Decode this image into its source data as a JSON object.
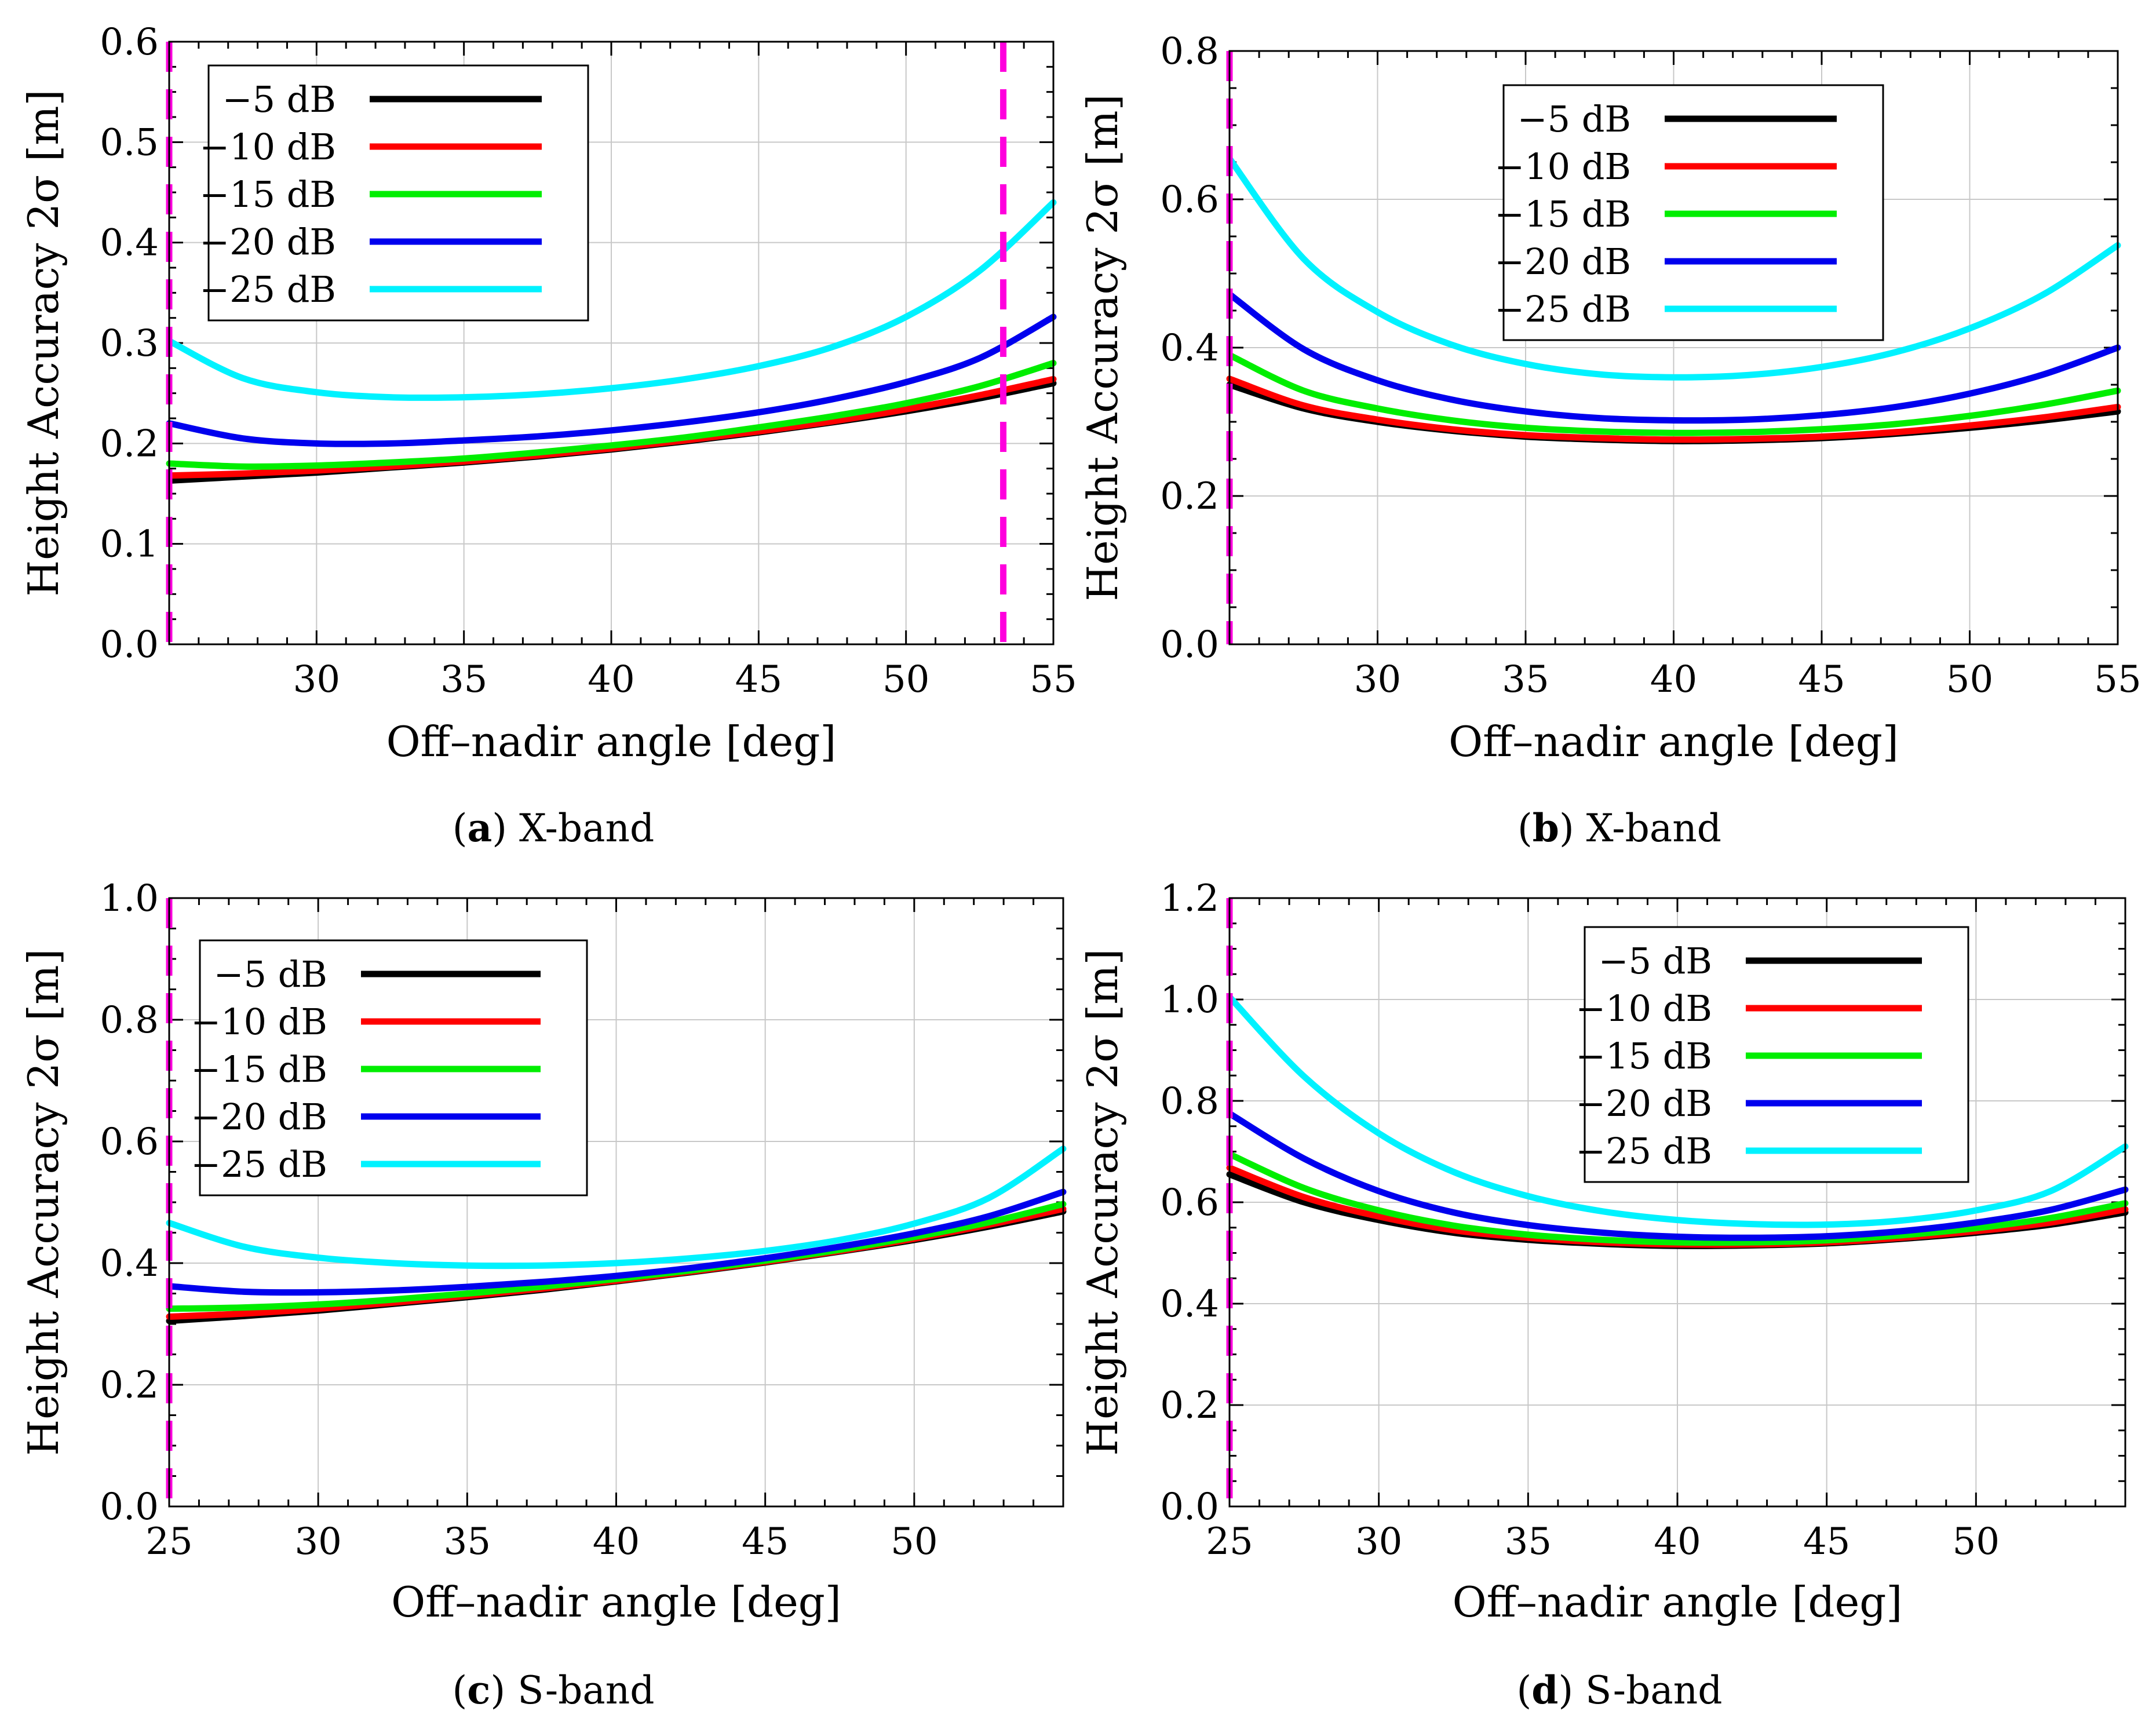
{
  "chart_data": [
    {
      "type": "line",
      "panel": "a",
      "caption_letter": "a",
      "caption_text": "X-band",
      "xlabel": "Off–nadir angle [deg]",
      "ylabel": "Height Accuracy 2σ [m]",
      "xlim": [
        25,
        55
      ],
      "ylim": [
        0,
        0.6
      ],
      "xticks": [
        30,
        35,
        40,
        45,
        50,
        55
      ],
      "yticks": [
        0.0,
        0.1,
        0.2,
        0.3,
        0.4,
        0.5,
        0.6
      ],
      "ytick_labels": [
        "0.0",
        "0.1",
        "0.2",
        "0.3",
        "0.4",
        "0.5",
        "0.6"
      ],
      "grid": true,
      "legend_location": "upper-left",
      "vertical_markers": [
        25,
        53.3
      ],
      "x": [
        25,
        27.5,
        30,
        32.5,
        35,
        37.5,
        40,
        42.5,
        45,
        47.5,
        50,
        52.5,
        55
      ],
      "series": [
        {
          "name": "−5 dB",
          "color": "#000000",
          "values": [
            0.163,
            0.167,
            0.171,
            0.176,
            0.181,
            0.187,
            0.194,
            0.202,
            0.211,
            0.221,
            0.232,
            0.245,
            0.26
          ]
        },
        {
          "name": "−10 dB",
          "color": "#ff0000",
          "values": [
            0.168,
            0.17,
            0.173,
            0.177,
            0.182,
            0.188,
            0.195,
            0.203,
            0.212,
            0.222,
            0.234,
            0.248,
            0.264
          ]
        },
        {
          "name": "−15 dB",
          "color": "#00ee00",
          "values": [
            0.18,
            0.177,
            0.178,
            0.181,
            0.185,
            0.191,
            0.198,
            0.206,
            0.216,
            0.227,
            0.24,
            0.257,
            0.28
          ]
        },
        {
          "name": "−20 dB",
          "color": "#0000ee",
          "values": [
            0.22,
            0.205,
            0.2,
            0.2,
            0.203,
            0.207,
            0.213,
            0.221,
            0.231,
            0.244,
            0.261,
            0.285,
            0.326
          ]
        },
        {
          "name": "−25 dB",
          "color": "#00f2ff",
          "values": [
            0.302,
            0.265,
            0.251,
            0.246,
            0.246,
            0.249,
            0.255,
            0.264,
            0.277,
            0.296,
            0.326,
            0.372,
            0.44
          ]
        }
      ]
    },
    {
      "type": "line",
      "panel": "b",
      "caption_letter": "b",
      "caption_text": "X-band",
      "xlabel": "Off–nadir angle [deg]",
      "ylabel": "Height Accuracy 2σ [m]",
      "xlim": [
        25,
        55
      ],
      "ylim": [
        0,
        0.8
      ],
      "xticks": [
        30,
        35,
        40,
        45,
        50,
        55
      ],
      "yticks": [
        0.0,
        0.2,
        0.4,
        0.6,
        0.8
      ],
      "ytick_labels": [
        "0.0",
        "0.2",
        "0.4",
        "0.6",
        "0.8"
      ],
      "grid": true,
      "legend_location": "upper-center",
      "vertical_markers": [
        25
      ],
      "x": [
        25,
        27.5,
        30,
        32.5,
        35,
        37.5,
        40,
        42.5,
        45,
        47.5,
        50,
        52.5,
        55
      ],
      "series": [
        {
          "name": "−5 dB",
          "color": "#000000",
          "values": [
            0.35,
            0.318,
            0.3,
            0.288,
            0.28,
            0.276,
            0.274,
            0.275,
            0.278,
            0.284,
            0.292,
            0.302,
            0.314
          ]
        },
        {
          "name": "−10 dB",
          "color": "#ff0000",
          "values": [
            0.358,
            0.322,
            0.303,
            0.29,
            0.282,
            0.278,
            0.276,
            0.277,
            0.28,
            0.286,
            0.295,
            0.306,
            0.32
          ]
        },
        {
          "name": "−15 dB",
          "color": "#00ee00",
          "values": [
            0.39,
            0.342,
            0.318,
            0.302,
            0.292,
            0.287,
            0.285,
            0.286,
            0.29,
            0.297,
            0.308,
            0.323,
            0.342
          ]
        },
        {
          "name": "−20 dB",
          "color": "#0000ee",
          "values": [
            0.472,
            0.398,
            0.356,
            0.33,
            0.314,
            0.305,
            0.302,
            0.303,
            0.309,
            0.32,
            0.338,
            0.364,
            0.4
          ]
        },
        {
          "name": "−25 dB",
          "color": "#00f2ff",
          "values": [
            0.655,
            0.52,
            0.448,
            0.404,
            0.378,
            0.364,
            0.36,
            0.363,
            0.374,
            0.394,
            0.426,
            0.472,
            0.538
          ]
        }
      ]
    },
    {
      "type": "line",
      "panel": "c",
      "caption_letter": "c",
      "caption_text": "S-band",
      "xlabel": "Off–nadir angle [deg]",
      "ylabel": "Height Accuracy 2σ [m]",
      "xlim": [
        25,
        55
      ],
      "ylim": [
        0,
        1.0
      ],
      "xticks": [
        25,
        30,
        35,
        40,
        45,
        50
      ],
      "yticks": [
        0.0,
        0.2,
        0.4,
        0.6,
        0.8,
        1.0
      ],
      "ytick_labels": [
        "0.0",
        "0.2",
        "0.4",
        "0.6",
        "0.8",
        "1.0"
      ],
      "grid": true,
      "legend_location": "upper-left",
      "vertical_markers": [
        25
      ],
      "x": [
        25,
        27.5,
        30,
        32.5,
        35,
        37.5,
        40,
        42.5,
        45,
        47.5,
        50,
        52.5,
        55
      ],
      "series": [
        {
          "name": "−5 dB",
          "color": "#000000",
          "values": [
            0.305,
            0.313,
            0.322,
            0.333,
            0.344,
            0.356,
            0.37,
            0.385,
            0.401,
            0.419,
            0.438,
            0.46,
            0.485
          ]
        },
        {
          "name": "−10 dB",
          "color": "#ff0000",
          "values": [
            0.312,
            0.317,
            0.325,
            0.335,
            0.346,
            0.358,
            0.371,
            0.386,
            0.402,
            0.42,
            0.44,
            0.463,
            0.489
          ]
        },
        {
          "name": "−15 dB",
          "color": "#00ee00",
          "values": [
            0.325,
            0.327,
            0.332,
            0.34,
            0.35,
            0.361,
            0.374,
            0.388,
            0.404,
            0.422,
            0.443,
            0.467,
            0.497
          ]
        },
        {
          "name": "−20 dB",
          "color": "#0000ee",
          "values": [
            0.362,
            0.353,
            0.352,
            0.355,
            0.361,
            0.369,
            0.379,
            0.392,
            0.408,
            0.427,
            0.449,
            0.477,
            0.517
          ]
        },
        {
          "name": "−25 dB",
          "color": "#00f2ff",
          "values": [
            0.466,
            0.427,
            0.409,
            0.4,
            0.396,
            0.396,
            0.4,
            0.408,
            0.42,
            0.438,
            0.465,
            0.507,
            0.588
          ]
        }
      ]
    },
    {
      "type": "line",
      "panel": "d",
      "caption_letter": "d",
      "caption_text": "S-band",
      "xlabel": "Off–nadir angle [deg]",
      "ylabel": "Height Accuracy 2σ [m]",
      "xlim": [
        25,
        55
      ],
      "ylim": [
        0,
        1.2
      ],
      "xticks": [
        25,
        30,
        35,
        40,
        45,
        50
      ],
      "yticks": [
        0.0,
        0.2,
        0.4,
        0.6,
        0.8,
        1.0,
        1.2
      ],
      "ytick_labels": [
        "0.0",
        "0.2",
        "0.4",
        "0.6",
        "0.8",
        "1.0",
        "1.2"
      ],
      "grid": true,
      "legend_location": "upper-center",
      "vertical_markers": [
        25
      ],
      "x": [
        25,
        27.5,
        30,
        32.5,
        35,
        37.5,
        40,
        42.5,
        45,
        47.5,
        50,
        52.5,
        55
      ],
      "series": [
        {
          "name": "−5 dB",
          "color": "#000000",
          "values": [
            0.655,
            0.6,
            0.565,
            0.54,
            0.526,
            0.518,
            0.514,
            0.515,
            0.519,
            0.528,
            0.54,
            0.556,
            0.58
          ]
        },
        {
          "name": "−10 dB",
          "color": "#ff0000",
          "values": [
            0.668,
            0.61,
            0.572,
            0.545,
            0.53,
            0.521,
            0.517,
            0.517,
            0.521,
            0.53,
            0.543,
            0.56,
            0.586
          ]
        },
        {
          "name": "−15 dB",
          "color": "#00ee00",
          "values": [
            0.695,
            0.628,
            0.584,
            0.554,
            0.536,
            0.526,
            0.521,
            0.521,
            0.525,
            0.535,
            0.549,
            0.569,
            0.598
          ]
        },
        {
          "name": "−20 dB",
          "color": "#0000ee",
          "values": [
            0.775,
            0.686,
            0.622,
            0.58,
            0.555,
            0.54,
            0.532,
            0.53,
            0.533,
            0.543,
            0.56,
            0.585,
            0.625
          ]
        },
        {
          "name": "−25 dB",
          "color": "#00f2ff",
          "values": [
            1.005,
            0.848,
            0.736,
            0.66,
            0.612,
            0.582,
            0.565,
            0.557,
            0.556,
            0.564,
            0.584,
            0.622,
            0.71
          ]
        }
      ]
    }
  ]
}
